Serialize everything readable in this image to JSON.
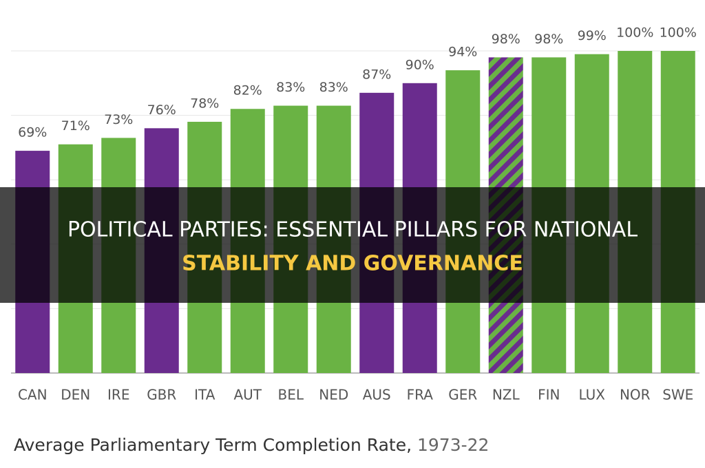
{
  "chart_data": {
    "type": "bar",
    "categories": [
      "CAN",
      "DEN",
      "IRE",
      "GBR",
      "ITA",
      "AUT",
      "BEL",
      "NED",
      "AUS",
      "FRA",
      "GER",
      "NZL",
      "FIN",
      "LUX",
      "NOR",
      "SWE"
    ],
    "values": [
      69,
      71,
      73,
      76,
      78,
      82,
      83,
      83,
      87,
      90,
      94,
      98,
      98,
      99,
      100,
      100
    ],
    "value_labels": [
      "69%",
      "71%",
      "73%",
      "76%",
      "78%",
      "82%",
      "83%",
      "83%",
      "87%",
      "90%",
      "94%",
      "98%",
      "98%",
      "99%",
      "100%",
      "100%"
    ],
    "colors": [
      "#6a2c8e",
      "#6ab344",
      "#6ab344",
      "#6a2c8e",
      "#6ab344",
      "#6ab344",
      "#6ab344",
      "#6ab344",
      "#6a2c8e",
      "#6a2c8e",
      "#6ab344",
      [
        "#6a2c8e",
        "#6ab344"
      ],
      "#6ab344",
      "#6ab344",
      "#6ab344",
      "#6ab344"
    ],
    "ylim": [
      0,
      100
    ],
    "yticks": [
      0,
      20,
      40,
      60,
      80,
      100
    ],
    "grid": true,
    "caption": "Average Parliamentary Term Completion Rate,",
    "caption_period": "1973-22"
  },
  "banner": {
    "line1": "POLITICAL PARTIES: ESSENTIAL PILLARS FOR NATIONAL",
    "line2": "STABILITY AND GOVERNANCE"
  }
}
